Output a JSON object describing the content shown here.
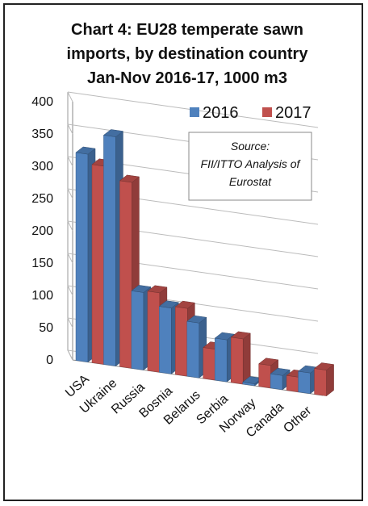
{
  "chart_data": {
    "type": "bar",
    "title_lines": [
      "Chart 4: EU28 temperate sawn",
      "imports, by destination country",
      "Jan-Nov 2016-17, 1000 m3"
    ],
    "categories": [
      "USA",
      "Ukraine",
      "Russia",
      "Bosnia",
      "Belarus",
      "Serbia",
      "Norway",
      "Canada",
      "Other"
    ],
    "series": [
      {
        "name": "2016",
        "color": "#4f81bd",
        "values": [
          322,
          355,
          120,
          102,
          85,
          65,
          3,
          22,
          32
        ]
      },
      {
        "name": "2017",
        "color": "#c0504d",
        "values": [
          307,
          288,
          123,
          105,
          48,
          70,
          35,
          23,
          40
        ]
      }
    ],
    "yticks": [
      0,
      50,
      100,
      150,
      200,
      250,
      300,
      350,
      400
    ],
    "ylim": [
      0,
      400
    ],
    "grid": true,
    "legend_placement": "top-right",
    "source_lines": [
      "Source:",
      "FII/ITTO Analysis of",
      "Eurostat"
    ]
  }
}
